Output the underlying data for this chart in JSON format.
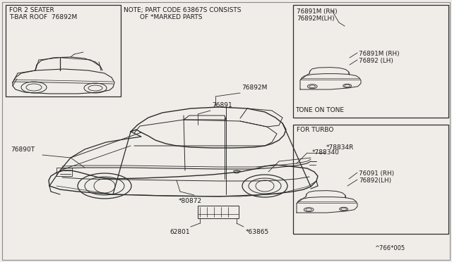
{
  "bg_color": "#f0ede8",
  "border_color": "#888888",
  "line_color": "#2a2a2a",
  "text_color": "#1a1a1a",
  "fig_width": 6.4,
  "fig_height": 3.72,
  "dpi": 100,
  "note_line1": "NOTE; PART CODE 63867S CONSISTS",
  "note_line2": "        OF *MARKED PARTS",
  "tl_label1": "FOR 2 SEATER",
  "tl_label2": "T-BAR ROOF  76892M",
  "tr_label1": "76891M (RH)",
  "tr_label2": "76892M(LH)",
  "tr_label3": "76891M (RH)",
  "tr_label4": "76892 (LH)",
  "tone_label": "TONE ON TONE",
  "br_label1": "FOR TURBO",
  "br_label2": "76091 (RH)",
  "br_label3": "76892(LH)",
  "p_76892M": "76892M",
  "p_76891": "76891",
  "p_76890T": "76890T",
  "p_78834R": "*78834R",
  "p_788340": "*788340",
  "p_80872": "*80872",
  "p_62801": "62801",
  "p_63865": "*63865",
  "footer": "^766*005"
}
